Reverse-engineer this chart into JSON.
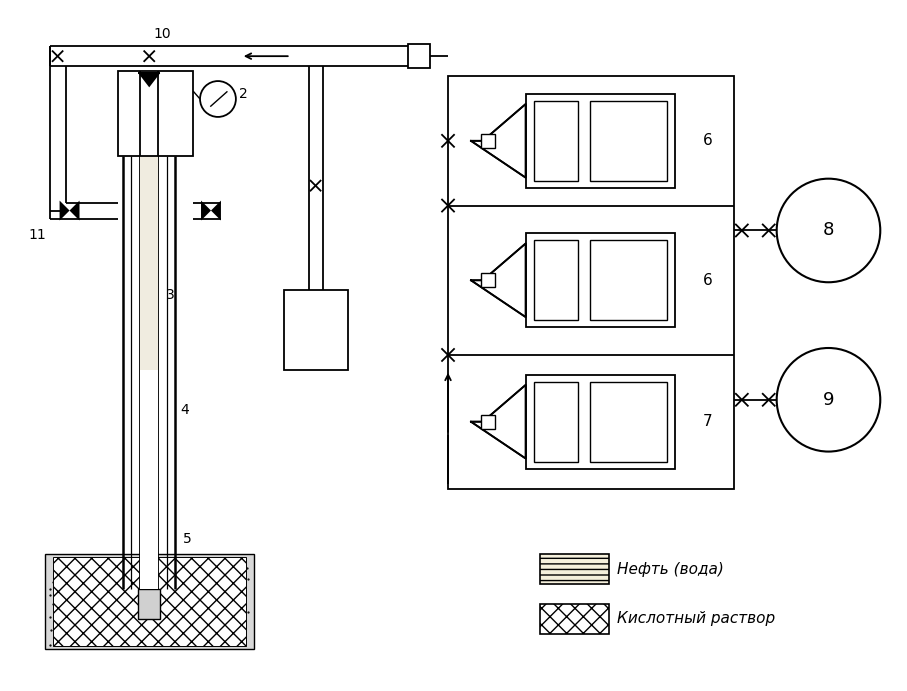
{
  "bg_color": "#ffffff",
  "lc": "#000000",
  "fig_w": 9.07,
  "fig_h": 6.91,
  "dpi": 100,
  "legend": {
    "oil_label": "Нефть (вода)",
    "acid_label": "Кислотный раствор"
  }
}
